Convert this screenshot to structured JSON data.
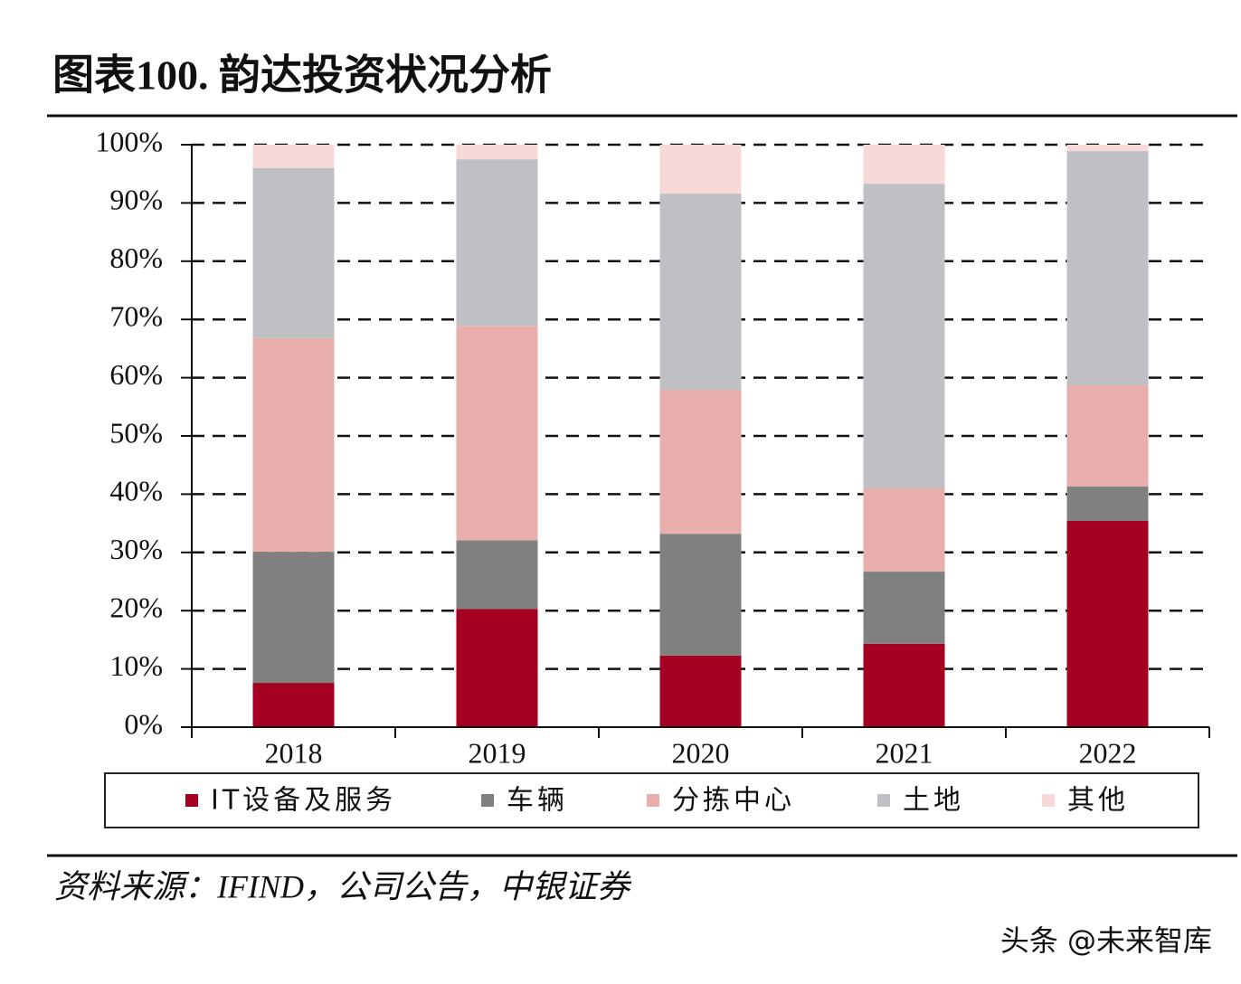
{
  "chart_data": {
    "type": "stacked_bar",
    "title": "图表100. 韵达投资状况分析",
    "source": "资料来源：IFIND，公司公告，中银证券",
    "categories": [
      "2018",
      "2019",
      "2020",
      "2021",
      "2022"
    ],
    "series": [
      {
        "name": "IT设备及服务",
        "color": "#a50021",
        "values": [
          7.6,
          20.3,
          12.3,
          14.3,
          35.4
        ]
      },
      {
        "name": "车辆",
        "color": "#808080",
        "values": [
          22.5,
          11.8,
          20.9,
          12.4,
          5.9
        ]
      },
      {
        "name": "分拣中心",
        "color": "#e8aeab",
        "values": [
          36.7,
          36.8,
          24.7,
          14.3,
          17.4
        ]
      },
      {
        "name": "土地",
        "color": "#c0c0c4",
        "values": [
          29.2,
          28.6,
          33.7,
          52.3,
          40.2
        ]
      },
      {
        "name": "其他",
        "color": "#f6d9d8",
        "values": [
          4.0,
          2.5,
          8.4,
          6.7,
          1.1
        ]
      }
    ],
    "ylim": [
      0,
      100
    ],
    "yticks": [
      {
        "value": 0,
        "label": "0%"
      },
      {
        "value": 10,
        "label": "10%"
      },
      {
        "value": 20,
        "label": "20%"
      },
      {
        "value": 30,
        "label": "30%"
      },
      {
        "value": 40,
        "label": "40%"
      },
      {
        "value": 50,
        "label": "50%"
      },
      {
        "value": 60,
        "label": "60%"
      },
      {
        "value": 70,
        "label": "70%"
      },
      {
        "value": 80,
        "label": "80%"
      },
      {
        "value": 90,
        "label": "90%"
      },
      {
        "value": 100,
        "label": "100%"
      }
    ],
    "grid": true
  },
  "watermark": "头条 @未来智库"
}
